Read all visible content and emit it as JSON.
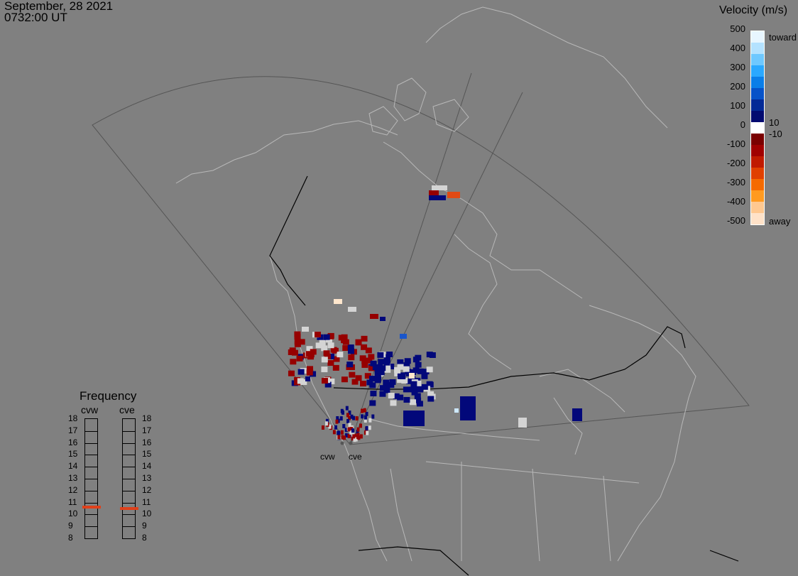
{
  "header": {
    "date": "September, 28 2021",
    "time": "0732:00 UT"
  },
  "legend": {
    "title": "Velocity (m/s)",
    "ticks": [
      "500",
      "400",
      "300",
      "200",
      "100",
      "0",
      "-100",
      "-200",
      "-300",
      "-400",
      "-500"
    ],
    "toward_label": "toward",
    "away_label": "away",
    "pos_small": "10",
    "neg_small": "-10",
    "colors": [
      "#e8f6ff",
      "#b4e2ff",
      "#6ec8ff",
      "#2aa8ff",
      "#0a7ee8",
      "#0652c8",
      "#032a96",
      "#020a70",
      "#ffffff",
      "#7a0000",
      "#a00000",
      "#c01a00",
      "#e04000",
      "#f56a00",
      "#ff9a20",
      "#ffc890",
      "#ffe2c8"
    ]
  },
  "frequency": {
    "title": "Frequency",
    "radars": [
      {
        "name": "cvw",
        "value": 10.6
      },
      {
        "name": "cve",
        "value": 10.5
      }
    ],
    "levels": [
      "18",
      "17",
      "16",
      "15",
      "14",
      "13",
      "12",
      "11",
      "10",
      "9",
      "8"
    ]
  },
  "sites": [
    {
      "name": "cvw"
    },
    {
      "name": "cve"
    }
  ],
  "data_colors": {
    "toward": "#02087a",
    "away": "#960000",
    "low": "#d4d4d4",
    "med_away": "#e04a14",
    "med_toward": "#1a56cc",
    "pale": "#ffe6cc"
  }
}
